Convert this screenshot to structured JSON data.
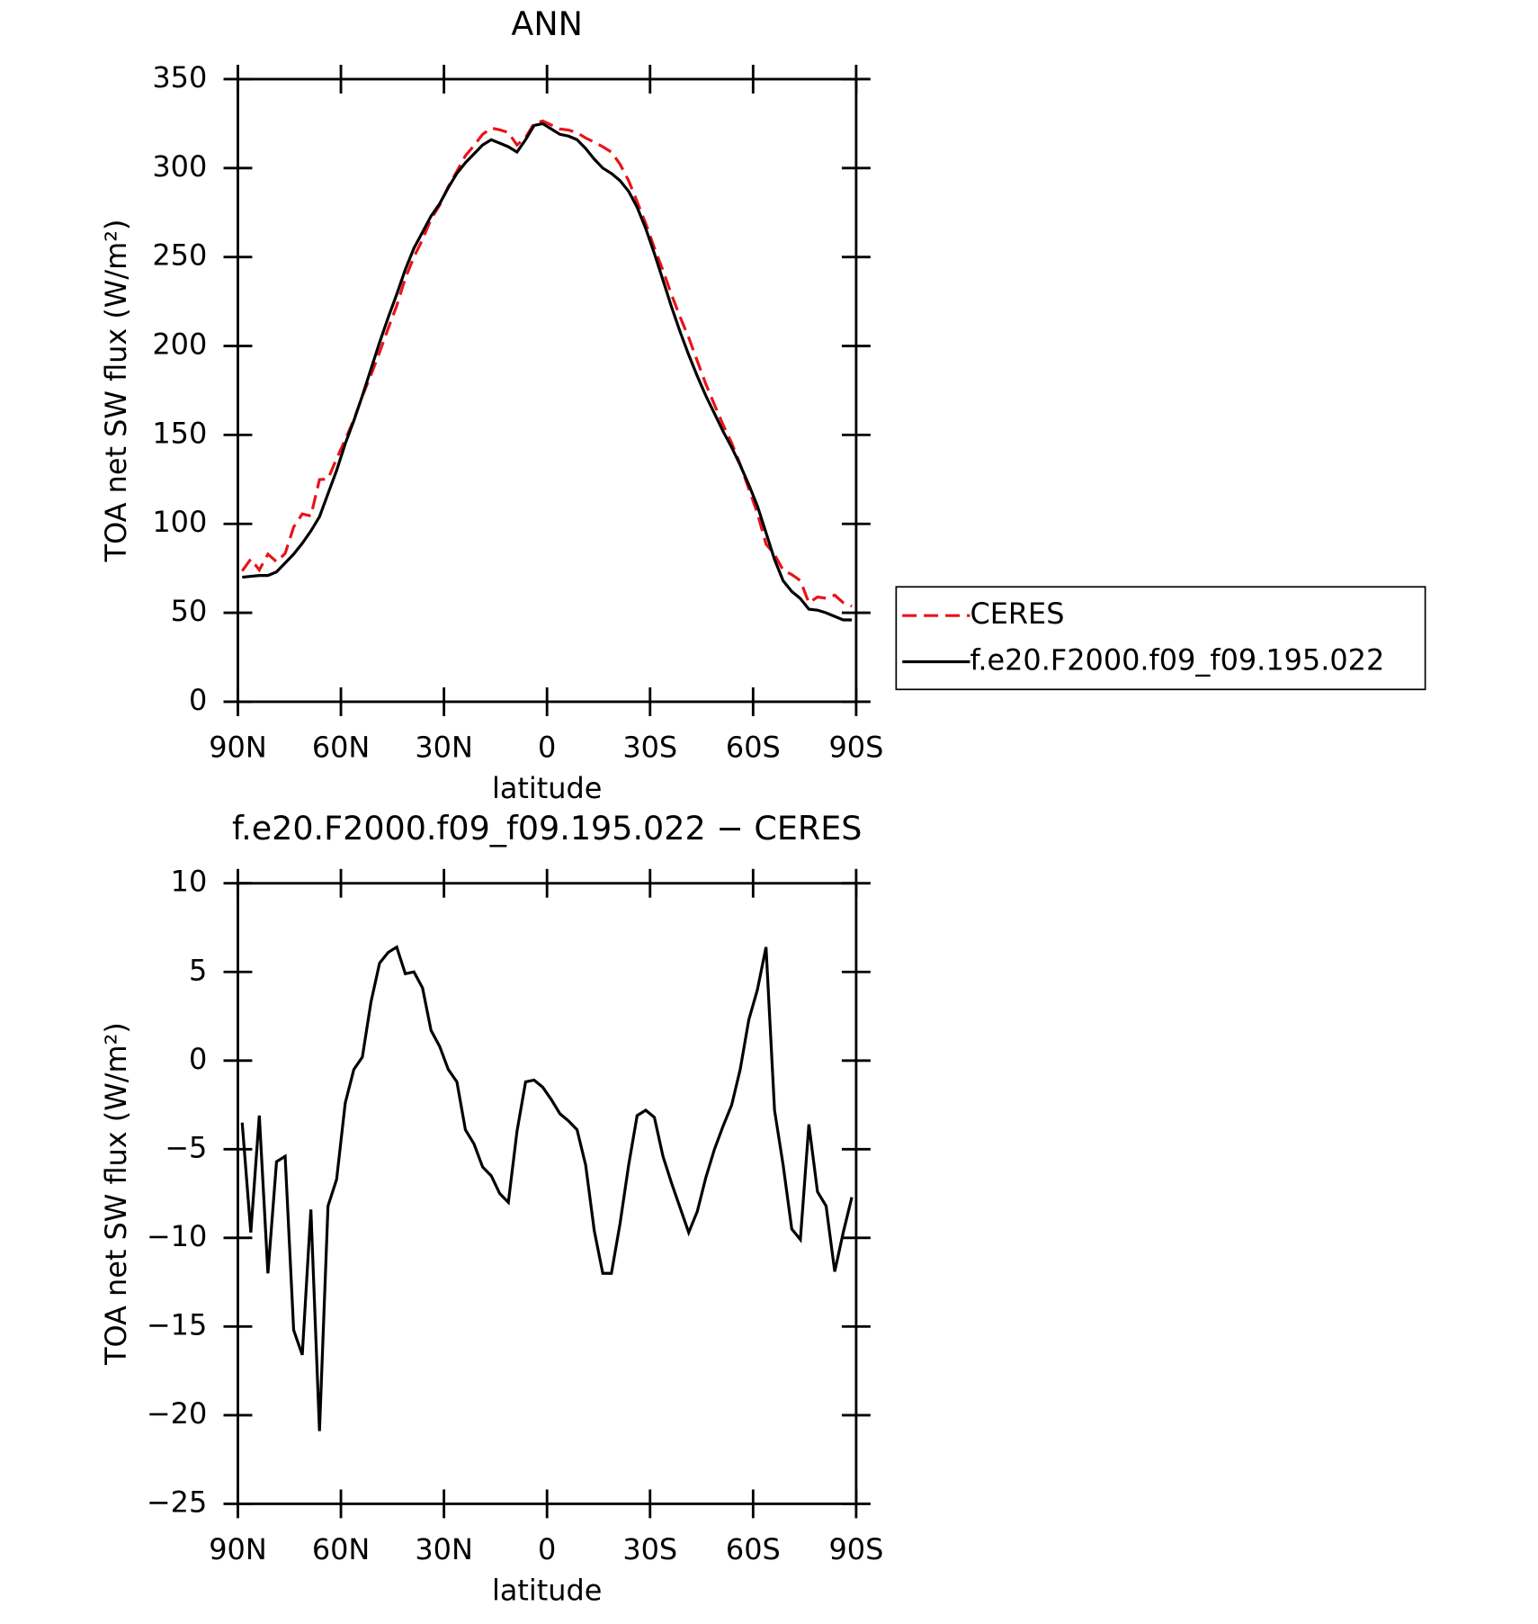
{
  "chart_data": [
    {
      "type": "line",
      "title": "ANN",
      "xlabel": "latitude",
      "ylabel": "TOA net SW flux (W/m²)",
      "x": [
        88.75,
        86.25,
        83.75,
        81.25,
        78.75,
        76.25,
        73.75,
        71.25,
        68.75,
        66.25,
        63.75,
        61.25,
        58.75,
        56.25,
        53.75,
        51.25,
        48.75,
        46.25,
        43.75,
        41.25,
        38.75,
        36.25,
        33.75,
        31.25,
        28.75,
        26.25,
        23.75,
        21.25,
        18.75,
        16.25,
        13.75,
        11.25,
        8.75,
        6.25,
        3.75,
        1.25,
        -1.25,
        -3.75,
        -6.25,
        -8.75,
        -11.25,
        -13.75,
        -16.25,
        -18.75,
        -21.25,
        -23.75,
        -26.25,
        -28.75,
        -31.25,
        -33.75,
        -36.25,
        -38.75,
        -41.25,
        -43.75,
        -46.25,
        -48.75,
        -51.25,
        -53.75,
        -56.25,
        -58.75,
        -61.25,
        -63.75,
        -66.25,
        -68.75,
        -71.25,
        -73.75,
        -76.25,
        -78.75,
        -81.25,
        -83.75,
        -86.25,
        -88.75
      ],
      "series": [
        {
          "name": "CERES",
          "color": "#e8141b",
          "dash": true,
          "values": [
            73.5,
            80.2,
            74.1,
            83,
            78.7,
            83.4,
            98.2,
            105.6,
            104.4,
            124.9,
            125.2,
            136.7,
            147.4,
            158.5,
            171.8,
            183.7,
            196.5,
            209.9,
            222.6,
            238.1,
            250,
            259.9,
            271.3,
            279.2,
            289.5,
            298.2,
            306.9,
            312.7,
            319,
            322.5,
            321.5,
            320,
            313,
            317.2,
            325.1,
            326.5,
            324.2,
            322,
            321.4,
            319.9,
            316.9,
            314.6,
            312,
            309,
            302.2,
            292.9,
            281.1,
            268.8,
            255.2,
            242.4,
            228.9,
            216.3,
            204.7,
            191.5,
            178.6,
            167,
            155.7,
            145.5,
            133.5,
            119.7,
            106,
            88.6,
            82.8,
            73.9,
            71.5,
            68.1,
            55.6,
            58.9,
            58.2,
            59.9,
            55.7,
            53.7
          ]
        },
        {
          "name": "f.e20.F2000.f09_f09.195.022",
          "color": "#000000",
          "dash": false,
          "values": [
            70,
            70.5,
            71,
            71,
            73,
            78,
            83,
            89,
            96,
            104,
            117,
            130,
            145,
            158,
            172,
            187,
            202,
            216,
            229,
            243,
            255,
            264,
            273,
            280,
            289,
            297,
            303,
            308,
            313,
            316,
            314,
            312,
            309,
            316,
            324,
            325,
            322,
            319,
            318,
            316,
            311,
            305,
            300,
            297,
            293,
            287,
            278,
            266,
            252,
            237,
            222,
            208,
            195,
            183,
            172,
            162,
            152,
            143,
            133,
            122,
            110,
            95,
            80,
            68,
            62,
            58,
            52,
            51.5,
            50,
            48,
            46,
            46
          ]
        }
      ],
      "xlim": [
        90,
        -90
      ],
      "xticks": [
        {
          "value": 90,
          "label": "90N"
        },
        {
          "value": 60,
          "label": "60N"
        },
        {
          "value": 30,
          "label": "30N"
        },
        0,
        {
          "value": -30,
          "label": "30S"
        },
        {
          "value": -60,
          "label": "60S"
        },
        {
          "value": -90,
          "label": "90S"
        }
      ],
      "ylim": [
        0,
        350
      ],
      "yticks": [
        0,
        50,
        100,
        150,
        200,
        250,
        300,
        350
      ],
      "legend": "right"
    },
    {
      "type": "line",
      "title": "f.e20.F2000.f09_f09.195.022 − CERES",
      "xlabel": "latitude",
      "ylabel": "TOA net SW flux (W/m²)",
      "x": [
        88.75,
        86.25,
        83.75,
        81.25,
        78.75,
        76.25,
        73.75,
        71.25,
        68.75,
        66.25,
        63.75,
        61.25,
        58.75,
        56.25,
        53.75,
        51.25,
        48.75,
        46.25,
        43.75,
        41.25,
        38.75,
        36.25,
        33.75,
        31.25,
        28.75,
        26.25,
        23.75,
        21.25,
        18.75,
        16.25,
        13.75,
        11.25,
        8.75,
        6.25,
        3.75,
        1.25,
        -1.25,
        -3.75,
        -6.25,
        -8.75,
        -11.25,
        -13.75,
        -16.25,
        -18.75,
        -21.25,
        -23.75,
        -26.25,
        -28.75,
        -31.25,
        -33.75,
        -36.25,
        -38.75,
        -41.25,
        -43.75,
        -46.25,
        -48.75,
        -51.25,
        -53.75,
        -56.25,
        -58.75,
        -61.25,
        -63.75,
        -66.25,
        -68.75,
        -71.25,
        -73.75,
        -76.25,
        -78.75,
        -81.25,
        -83.75,
        -86.25,
        -88.75
      ],
      "series": [
        {
          "color": "#000000",
          "dash": false,
          "values": [
            -3.5,
            -9.7,
            -3.1,
            -12,
            -5.7,
            -5.4,
            -15.2,
            -16.6,
            -8.4,
            -20.9,
            -8.2,
            -6.7,
            -2.4,
            -0.5,
            0.2,
            3.3,
            5.5,
            6.1,
            6.4,
            4.9,
            5,
            4.1,
            1.7,
            0.8,
            -0.5,
            -1.2,
            -3.9,
            -4.7,
            -6,
            -6.5,
            -7.5,
            -8,
            -4,
            -1.2,
            -1.1,
            -1.5,
            -2.2,
            -3,
            -3.4,
            -3.9,
            -5.9,
            -9.6,
            -12,
            -12,
            -9.2,
            -5.9,
            -3.1,
            -2.8,
            -3.2,
            -5.4,
            -6.9,
            -8.3,
            -9.7,
            -8.5,
            -6.6,
            -5,
            -3.7,
            -2.5,
            -0.5,
            2.3,
            4,
            6.4,
            -2.8,
            -5.9,
            -9.5,
            -10.1,
            -3.6,
            -7.4,
            -8.2,
            -11.9,
            -9.7,
            -7.7
          ]
        }
      ],
      "xlim": [
        90,
        -90
      ],
      "xticks": [
        {
          "value": 90,
          "label": "90N"
        },
        {
          "value": 60,
          "label": "60N"
        },
        {
          "value": 30,
          "label": "30N"
        },
        0,
        {
          "value": -30,
          "label": "30S"
        },
        {
          "value": -60,
          "label": "60S"
        },
        {
          "value": -90,
          "label": "90S"
        }
      ],
      "ylim": [
        -25,
        10
      ],
      "yticks": [
        {
          "value": -25,
          "label": "−25"
        },
        {
          "value": -20,
          "label": "−20"
        },
        {
          "value": -15,
          "label": "−15"
        },
        {
          "value": -10,
          "label": "−10"
        },
        {
          "value": -5,
          "label": "−5"
        },
        0,
        5,
        10
      ]
    }
  ]
}
